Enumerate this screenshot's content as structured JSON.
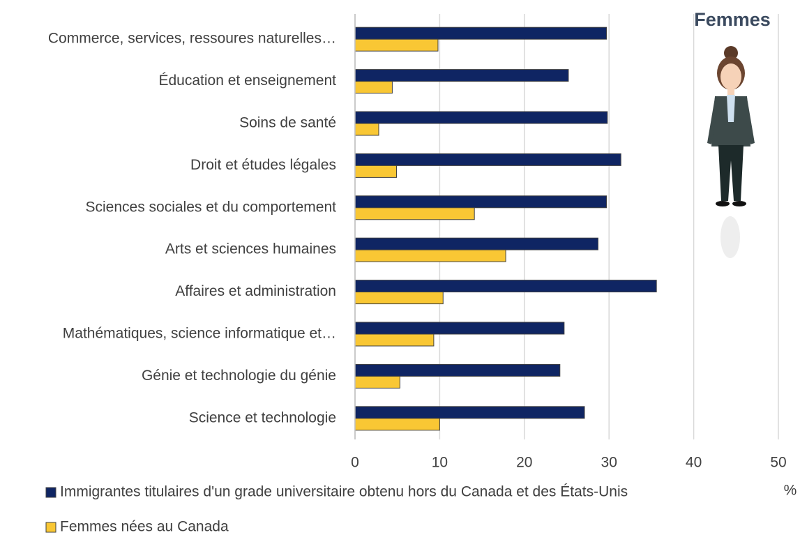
{
  "chart_data": {
    "type": "barh",
    "title": "Femmes",
    "x_label": "%",
    "categories": [
      "Commerce, services, ressoures naturelles…",
      "Éducation et enseignement",
      "Soins de santé",
      "Droit et études légales",
      "Sciences sociales et du comportement",
      "Arts et sciences humaines",
      "Affaires et administration",
      "Mathématiques, science informatique et…",
      "Génie et technologie du génie",
      "Science et technologie"
    ],
    "series": [
      {
        "name": "Immigrantes titulaires d'un grade universitaire obtenu hors du Canada et des États-Unis",
        "color": "#0f2563",
        "values": [
          29.7,
          25.2,
          29.8,
          31.4,
          29.7,
          28.7,
          35.6,
          24.7,
          24.2,
          27.1
        ]
      },
      {
        "name": "Femmes nées au Canada",
        "color": "#f9c734",
        "values": [
          9.8,
          4.4,
          2.8,
          4.9,
          14.1,
          17.8,
          10.4,
          9.3,
          5.3,
          10.0
        ]
      }
    ],
    "xlim": [
      0,
      50
    ],
    "xticks": [
      0,
      10,
      20,
      30,
      40,
      50
    ],
    "grid": true
  }
}
